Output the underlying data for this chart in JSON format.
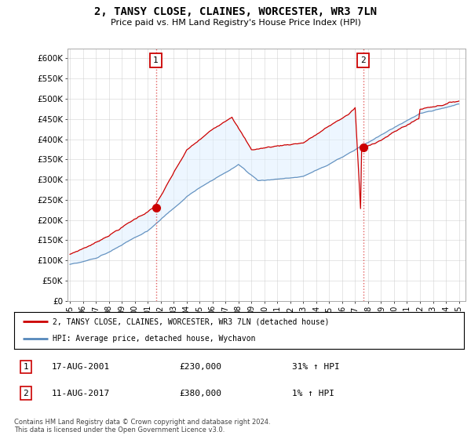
{
  "title": "2, TANSY CLOSE, CLAINES, WORCESTER, WR3 7LN",
  "subtitle": "Price paid vs. HM Land Registry's House Price Index (HPI)",
  "ylabel_ticks": [
    0,
    50000,
    100000,
    150000,
    200000,
    250000,
    300000,
    350000,
    400000,
    450000,
    500000,
    550000,
    600000
  ],
  "ylim": [
    0,
    625000
  ],
  "xlim_start": 1994.8,
  "xlim_end": 2025.5,
  "sale1_year": 2001.625,
  "sale1_price": 230000,
  "sale1_label": "1",
  "sale1_date": "17-AUG-2001",
  "sale1_hpi_pct": "31% ↑ HPI",
  "sale2_year": 2017.625,
  "sale2_price": 380000,
  "sale2_label": "2",
  "sale2_date": "11-AUG-2017",
  "sale2_hpi_pct": "1% ↑ HPI",
  "line_color_red": "#cc0000",
  "line_color_blue": "#5588bb",
  "fill_color_blue": "#ddeeff",
  "dashed_color": "#dd4444",
  "background_color": "#ffffff",
  "grid_color": "#cccccc",
  "legend_label_red": "2, TANSY CLOSE, CLAINES, WORCESTER, WR3 7LN (detached house)",
  "legend_label_blue": "HPI: Average price, detached house, Wychavon",
  "footnote": "Contains HM Land Registry data © Crown copyright and database right 2024.\nThis data is licensed under the Open Government Licence v3.0.",
  "x_tick_years": [
    1995,
    1996,
    1997,
    1998,
    1999,
    2000,
    2001,
    2002,
    2003,
    2004,
    2005,
    2006,
    2007,
    2008,
    2009,
    2010,
    2011,
    2012,
    2013,
    2014,
    2015,
    2016,
    2017,
    2018,
    2019,
    2020,
    2021,
    2022,
    2023,
    2024,
    2025
  ]
}
